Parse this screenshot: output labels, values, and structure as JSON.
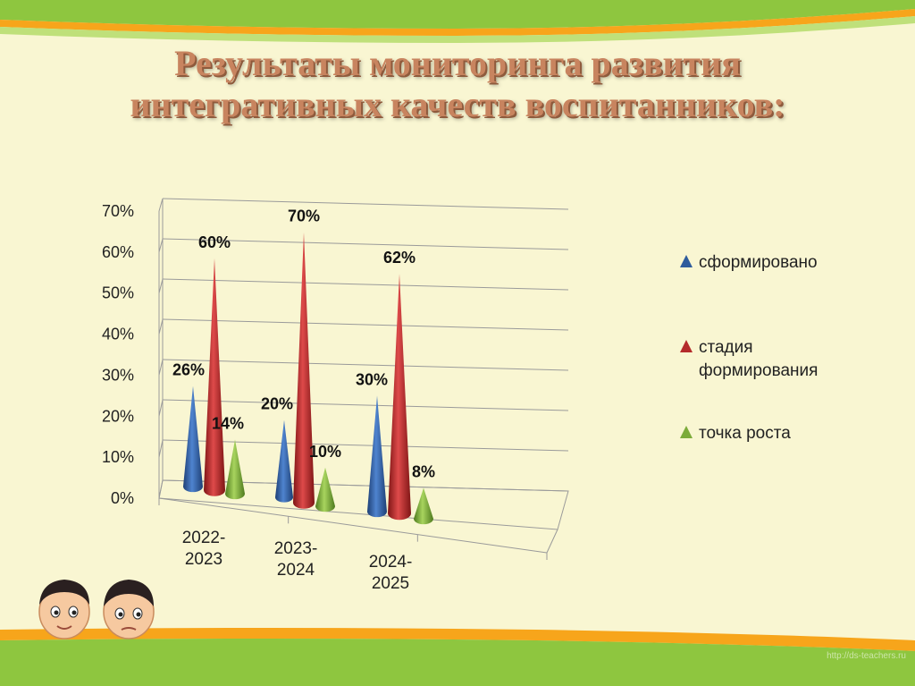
{
  "slide": {
    "title_line1": "Результаты мониторинга развития",
    "title_line2": "интегративных качеств воспитанников:",
    "watermark": "http://ds-teachers.ru"
  },
  "colors": {
    "background": "#f9f6d2",
    "band_green": "#8ec63f",
    "band_orange": "#f7a51b",
    "series": [
      "#2f5c9c",
      "#b42b2b",
      "#7cab3a"
    ]
  },
  "chart_data": {
    "type": "bar",
    "style": "3d-cone",
    "categories": [
      "2022-2023",
      "2023-2024",
      "2024-2025"
    ],
    "series": [
      {
        "name": "сформировано",
        "values": [
          26,
          20,
          30
        ],
        "labels": [
          "26%",
          "20%",
          "30%"
        ]
      },
      {
        "name": "стадия формирования",
        "values": [
          60,
          70,
          62
        ],
        "labels": [
          "60%",
          "70%",
          "62%"
        ]
      },
      {
        "name": "точка роста",
        "values": [
          14,
          10,
          8
        ],
        "labels": [
          "14%",
          "10%",
          "8%"
        ]
      }
    ],
    "yticks": [
      "0%",
      "10%",
      "20%",
      "30%",
      "40%",
      "50%",
      "60%",
      "70%"
    ],
    "ylim": [
      0,
      70
    ],
    "grid": true,
    "legend": "right"
  }
}
